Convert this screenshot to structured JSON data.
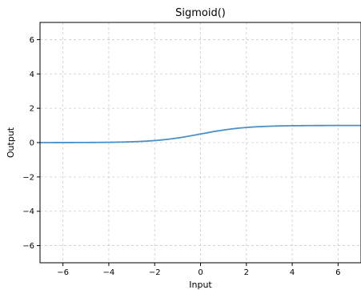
{
  "chart_data": {
    "type": "line",
    "title": "Sigmoid()",
    "xlabel": "Input",
    "ylabel": "Output",
    "xlim": [
      -7,
      7
    ],
    "ylim": [
      -7,
      7
    ],
    "xticks": [
      -6,
      -4,
      -2,
      0,
      2,
      4,
      6
    ],
    "yticks": [
      -6,
      -4,
      -2,
      0,
      2,
      4,
      6
    ],
    "xtick_labels": [
      "−6",
      "−4",
      "−2",
      "0",
      "2",
      "4",
      "6"
    ],
    "ytick_labels": [
      "−6",
      "−4",
      "−2",
      "0",
      "2",
      "4",
      "6"
    ],
    "grid": true,
    "series": [
      {
        "function": "sigmoid",
        "color": "#4a90c8",
        "x": [
          -7,
          -6,
          -5,
          -4,
          -3,
          -2,
          -1,
          0,
          1,
          2,
          3,
          4,
          5,
          6,
          7
        ],
        "y": [
          0.0009,
          0.0025,
          0.0067,
          0.018,
          0.0474,
          0.1192,
          0.2689,
          0.5,
          0.7311,
          0.8808,
          0.9526,
          0.982,
          0.9933,
          0.9975,
          0.9991
        ]
      }
    ]
  },
  "colors": {
    "grid": "#cccccc",
    "line": "#4a90c8",
    "axes": "#000000"
  }
}
